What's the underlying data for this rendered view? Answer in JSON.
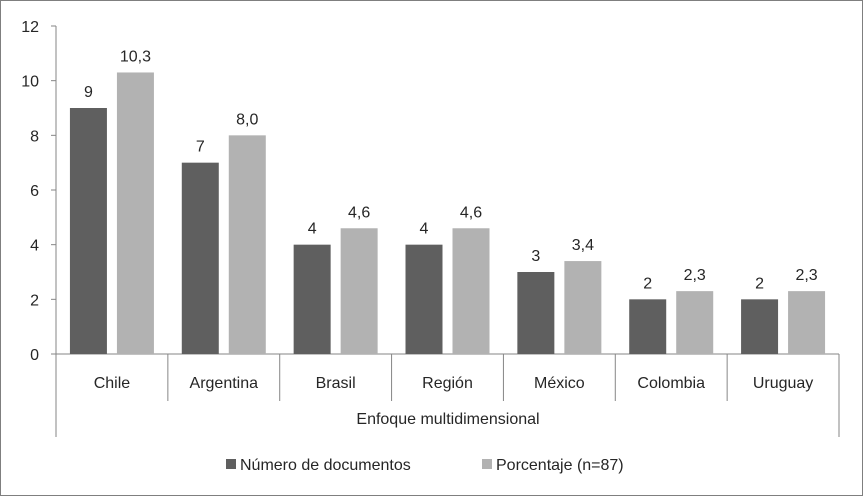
{
  "chart_data": {
    "type": "bar",
    "categories": [
      "Chile",
      "Argentina",
      "Brasil",
      "Región",
      "México",
      "Colombia",
      "Uruguay"
    ],
    "series": [
      {
        "name": "Número de documentos",
        "values": [
          9,
          7,
          4,
          4,
          3,
          2,
          2
        ],
        "labels": [
          "9",
          "7",
          "4",
          "4",
          "3",
          "2",
          "2"
        ],
        "color": "#5f5f5f"
      },
      {
        "name": "Porcentaje (n=87)",
        "values": [
          10.3,
          8.0,
          4.6,
          4.6,
          3.4,
          2.3,
          2.3
        ],
        "labels": [
          "10,3",
          "8,0",
          "4,6",
          "4,6",
          "3,4",
          "2,3",
          "2,3"
        ],
        "color": "#b2b2b2"
      }
    ],
    "xlabel": "Enfoque multidimensional",
    "ylim": [
      0,
      12
    ],
    "yticks": [
      0,
      2,
      4,
      6,
      8,
      10,
      12
    ],
    "grid": false,
    "legend_position": "bottom"
  }
}
